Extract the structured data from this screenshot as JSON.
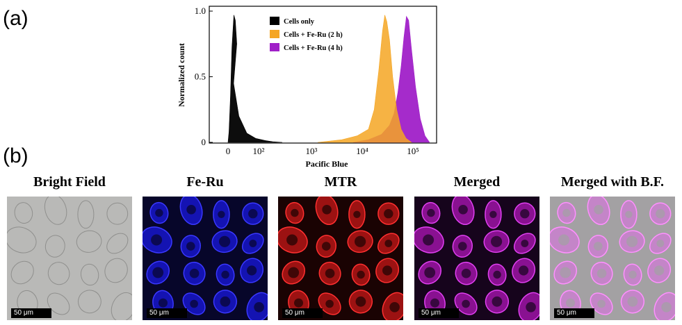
{
  "panel_a_label": "(a)",
  "panel_b_label": "(b)",
  "chart_data": {
    "type": "area",
    "xlabel": "Pacific Blue",
    "ylabel": "Normalized count",
    "x_ticks": [
      "0",
      "10²",
      "10³",
      "10⁴",
      "10⁵"
    ],
    "y_ticks": [
      "0",
      "0.5",
      "1.0"
    ],
    "ylim": [
      0,
      1.0
    ],
    "x_scale": "log",
    "legend_position": "top-left",
    "series": [
      {
        "name": "Cells only",
        "color": "#000000",
        "x": [
          0,
          2,
          5,
          8,
          12,
          15,
          18,
          22,
          28,
          40,
          60,
          90,
          130,
          200
        ],
        "y": [
          0.0,
          0.08,
          0.35,
          0.72,
          0.97,
          0.93,
          0.75,
          0.45,
          0.2,
          0.07,
          0.03,
          0.015,
          0.005,
          0.0
        ]
      },
      {
        "name": "Cells + Fe-Ru (2 h)",
        "color": "#f5a623",
        "x": [
          1000,
          3000,
          6000,
          10000,
          13000,
          16000,
          19000,
          21000,
          23000,
          26000,
          30000,
          36000,
          44000,
          55000,
          70000
        ],
        "y": [
          0.0,
          0.02,
          0.05,
          0.1,
          0.25,
          0.55,
          0.85,
          0.97,
          0.92,
          0.78,
          0.5,
          0.25,
          0.1,
          0.03,
          0.0
        ]
      },
      {
        "name": "Cells + Fe-Ru (4 h)",
        "color": "#a020c8",
        "x": [
          5000,
          10000,
          18000,
          26000,
          32000,
          38000,
          44000,
          50000,
          56000,
          62000,
          70000,
          85000,
          105000,
          130000,
          160000
        ],
        "y": [
          0.0,
          0.02,
          0.06,
          0.13,
          0.22,
          0.38,
          0.58,
          0.8,
          0.96,
          0.93,
          0.72,
          0.42,
          0.18,
          0.05,
          0.0
        ]
      }
    ]
  },
  "panels": [
    {
      "title": "Bright Field",
      "scale": "50 μm"
    },
    {
      "title": "Fe-Ru",
      "scale": "50 μm"
    },
    {
      "title": "MTR",
      "scale": "50 μm"
    },
    {
      "title": "Merged",
      "scale": "50 μm"
    },
    {
      "title": "Merged with B.F.",
      "scale": "50 μm"
    }
  ]
}
